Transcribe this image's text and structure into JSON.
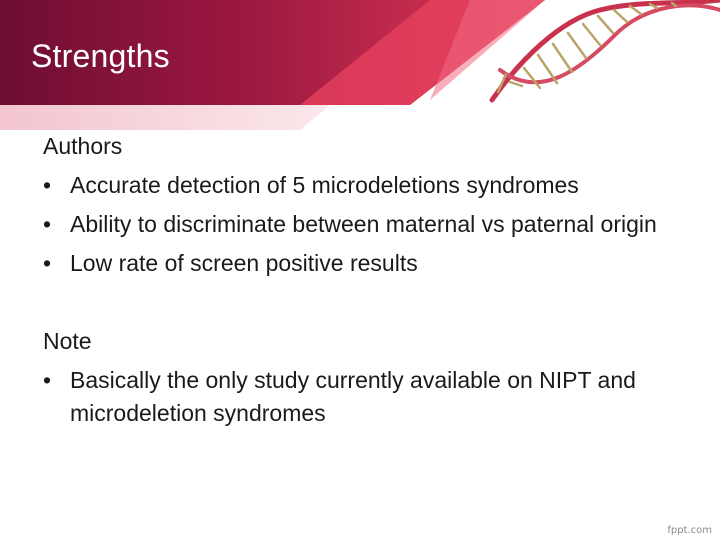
{
  "slide": {
    "title": "Strengths",
    "sections": [
      {
        "label": "Authors",
        "bullets": [
          "Accurate detection of 5 microdeletions syndromes",
          "Ability to discriminate between maternal vs paternal origin",
          "Low rate of screen positive results"
        ]
      },
      {
        "label": "Note",
        "bullets": [
          "Basically the only study currently available on NIPT and microdeletion syndromes"
        ]
      }
    ],
    "watermark": "fppt.com"
  },
  "colors": {
    "banner_dark": "#7a1035",
    "banner_accent": "#e8435f",
    "text": "#1a1a1a"
  },
  "icons": [
    "dna-helix-icon"
  ]
}
